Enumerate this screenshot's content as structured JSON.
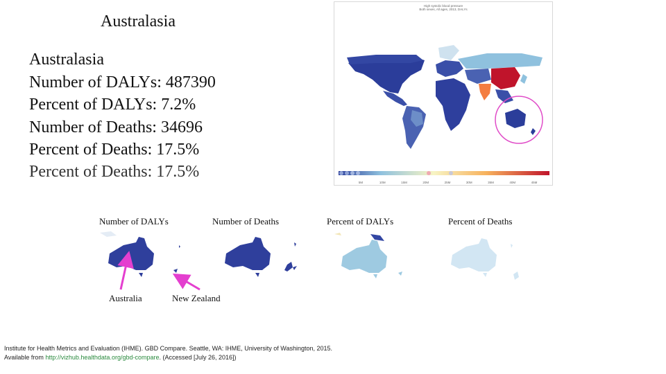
{
  "slide": {
    "title": "Australasia"
  },
  "stats": {
    "region": "Australasia",
    "lines": [
      "Number of DALYs: 487390",
      "Percent of DALYs: 7.2%",
      "Number of Deaths: 34696",
      "Percent of Deaths: 17.5%"
    ],
    "ghost_line": "Percent of Deaths: 17.5%"
  },
  "world_map": {
    "title_line1": "High systolic blood pressure",
    "title_line2": "Both sexes, All ages, 2013, DALYs",
    "scale_ticks": [
      "5M",
      "10M",
      "15M",
      "20M",
      "25M",
      "30M",
      "35M",
      "40M",
      "45M"
    ],
    "colors": {
      "low": "#2b3d9a",
      "mid": "#8fc1de",
      "high": "#c0142b",
      "highlight_ring": "#e04cc8"
    }
  },
  "map_panels": [
    {
      "label": "Number of DALYs",
      "fill": "#2f3f9c"
    },
    {
      "label": "Number of Deaths",
      "fill": "#2f3f9c"
    },
    {
      "label": "Percent of DALYs",
      "fill": "#9ecae1"
    },
    {
      "label": "Percent of Deaths",
      "fill": "#d2e6f3"
    }
  ],
  "annotations": {
    "australia": "Australia",
    "new_zealand": "New Zealand",
    "arrow_color": "#e43fcf"
  },
  "citation": {
    "text": "Institute for Health Metrics and Evaluation (IHME). GBD Compare. Seattle, WA: IHME, University of Washington, 2015. Available from ",
    "link": "http://vizhub.healthdata.org/gbd-compare",
    "suffix": ". (Accessed [July 26, 2016])"
  }
}
